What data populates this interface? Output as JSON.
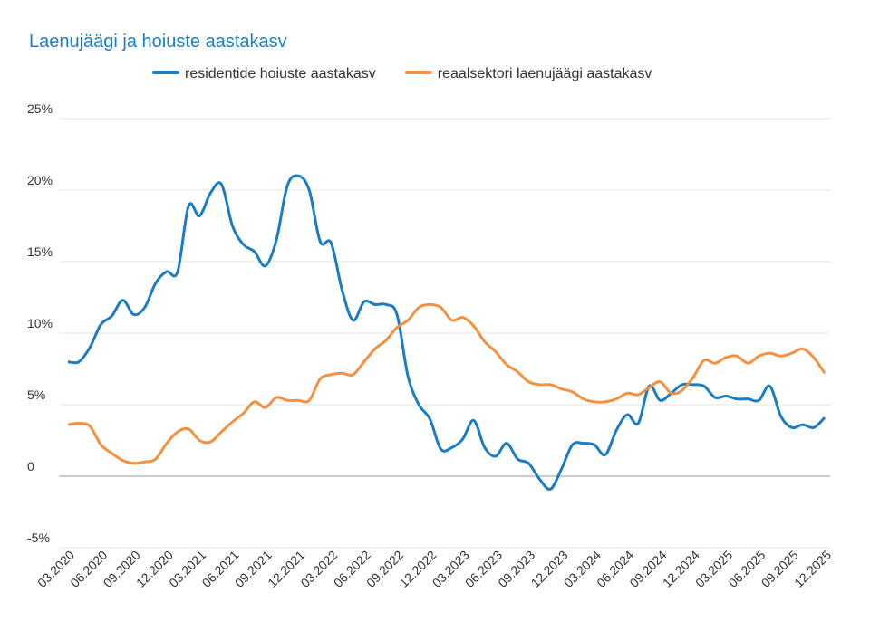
{
  "chart_data": {
    "type": "line",
    "title": "Laenujäägi ja hoiuste aastakasv",
    "categories": [
      "03.2020",
      null,
      null,
      "06.2020",
      null,
      null,
      "09.2020",
      null,
      null,
      "12.2020",
      null,
      null,
      "03.2021",
      null,
      null,
      "06.2021",
      null,
      null,
      "09.2021",
      null,
      null,
      "12.2021",
      null,
      null,
      "03.2022",
      null,
      null,
      "06.2022",
      null,
      null,
      "09.2022",
      null,
      null,
      "12.2022",
      null,
      null,
      "03.2023",
      null,
      null,
      "06.2023",
      null,
      null,
      "09.2023",
      null,
      null,
      "12.2023",
      null,
      null,
      "03.2024",
      null,
      null,
      "06.2024",
      null,
      null,
      "09.2024",
      null,
      null,
      "12.2024",
      null,
      null,
      "03.2025",
      null,
      null,
      "06.2025",
      null,
      null,
      "09.2025",
      null,
      null,
      "12.2025"
    ],
    "series": [
      {
        "name": "residentide hoiuste aastakasv",
        "color": "#1a7cc1",
        "values": [
          8.0,
          8.0,
          9.0,
          10.6,
          11.2,
          12.3,
          11.3,
          11.8,
          13.5,
          14.3,
          14.3,
          18.9,
          18.2,
          19.8,
          20.4,
          17.5,
          16.2,
          15.7,
          14.7,
          16.5,
          20.3,
          21.0,
          20.0,
          16.4,
          16.3,
          13.0,
          10.9,
          12.2,
          12.0,
          12.0,
          11.3,
          7.0,
          5.0,
          4.0,
          1.9,
          2.0,
          2.6,
          3.9,
          2.0,
          1.4,
          2.3,
          1.2,
          0.9,
          -0.2,
          -0.9,
          0.5,
          2.2,
          2.3,
          2.2,
          1.5,
          3.2,
          4.3,
          3.7,
          6.3,
          5.3,
          5.8,
          6.4,
          6.4,
          6.3,
          5.5,
          5.6,
          5.4,
          5.4,
          5.3,
          6.3,
          4.2,
          3.4,
          3.6,
          3.4,
          4.1
        ]
      },
      {
        "name": "reaalsektori laenujäägi aastakasv",
        "color": "#f39141",
        "values": [
          3.6,
          3.7,
          3.5,
          2.2,
          1.6,
          1.1,
          0.9,
          1.0,
          1.2,
          2.3,
          3.1,
          3.3,
          2.5,
          2.4,
          3.1,
          3.8,
          4.4,
          5.2,
          4.8,
          5.5,
          5.3,
          5.3,
          5.3,
          6.8,
          7.1,
          7.2,
          7.1,
          8.0,
          8.9,
          9.5,
          10.4,
          10.9,
          11.8,
          12.0,
          11.8,
          10.9,
          11.1,
          10.5,
          9.4,
          8.7,
          7.8,
          7.3,
          6.6,
          6.4,
          6.4,
          6.1,
          5.9,
          5.4,
          5.2,
          5.2,
          5.4,
          5.8,
          5.7,
          6.2,
          6.6,
          5.8,
          6.0,
          6.9,
          8.1,
          7.9,
          8.3,
          8.4,
          7.9,
          8.4,
          8.6,
          8.4,
          8.6,
          8.9,
          8.3,
          7.2
        ]
      }
    ],
    "ylim": [
      -5,
      25
    ],
    "yticks": [
      {
        "value": -5,
        "label": "-5%"
      },
      0,
      {
        "value": 5,
        "label": "5%"
      },
      {
        "value": 10,
        "label": "10%"
      },
      {
        "value": 15,
        "label": "15%"
      },
      {
        "value": 20,
        "label": "20%"
      },
      {
        "value": 25,
        "label": "25%"
      }
    ],
    "grid": true,
    "legend": "top"
  }
}
